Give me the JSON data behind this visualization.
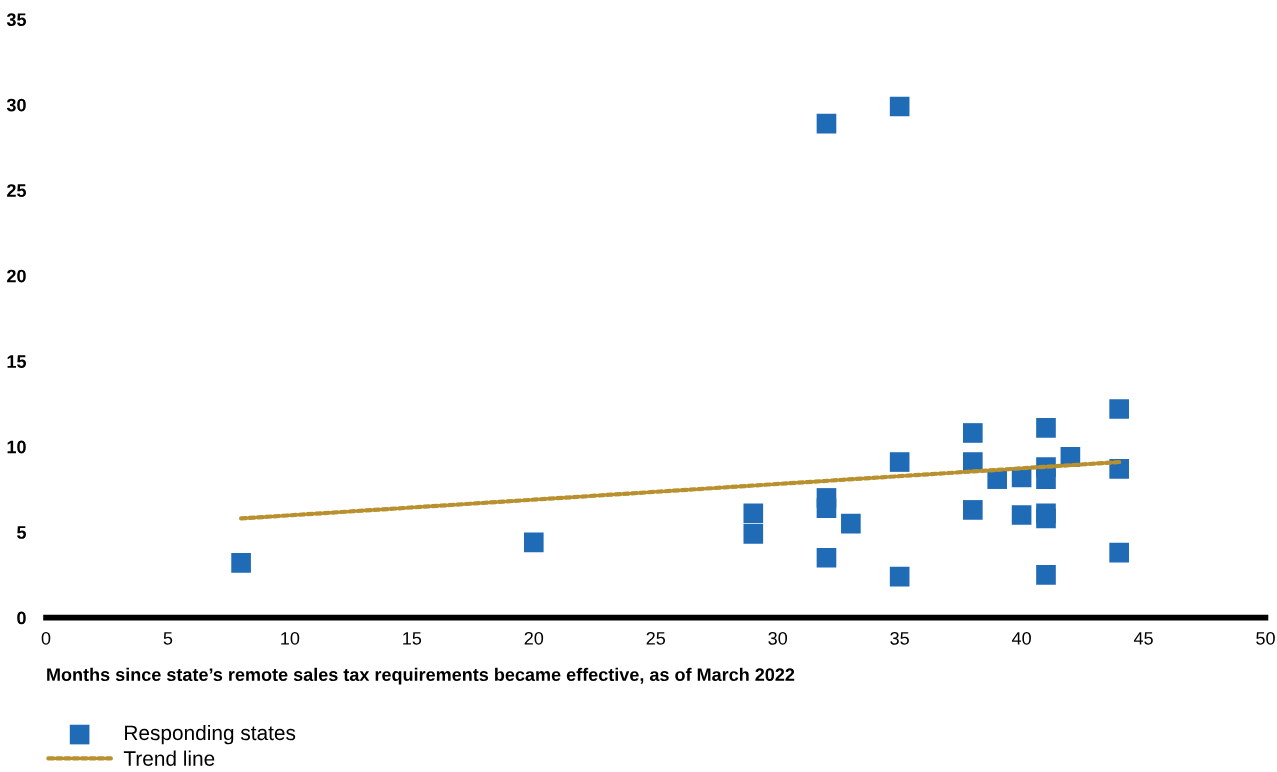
{
  "chart_data": {
    "type": "scatter",
    "xlabel": "Months since state’s remote sales tax requirements became effective, as of March 2022",
    "xlim": [
      0,
      50
    ],
    "xticks": [
      0,
      5,
      10,
      15,
      20,
      25,
      30,
      35,
      40,
      45,
      50
    ],
    "ylim": [
      0,
      35
    ],
    "yticks": [
      0,
      5,
      10,
      15,
      20,
      25,
      30,
      35
    ],
    "grid": false,
    "legend": "bottom left",
    "series": [
      {
        "name": "Responding states",
        "color": "#1f6bb6",
        "marker": "square",
        "x": [
          8,
          20,
          29,
          29,
          32,
          32,
          32,
          32,
          33,
          35,
          35,
          35,
          38,
          38,
          38,
          39,
          40,
          40,
          41,
          41,
          41,
          41,
          41,
          41,
          42,
          44,
          44,
          44
        ],
        "values": [
          3.2,
          4.4,
          6.1,
          4.9,
          28.9,
          7.0,
          6.4,
          3.5,
          5.5,
          29.9,
          9.1,
          2.4,
          10.8,
          9.1,
          6.3,
          8.1,
          8.2,
          6.0,
          11.1,
          8.8,
          8.1,
          6.1,
          5.8,
          2.5,
          9.4,
          12.2,
          8.7,
          3.8
        ]
      },
      {
        "name": "Trend line",
        "color": "#b8912e",
        "type": "line",
        "line_style": "dotted",
        "x": [
          8,
          44
        ],
        "values": [
          5.8,
          9.1
        ]
      }
    ]
  }
}
